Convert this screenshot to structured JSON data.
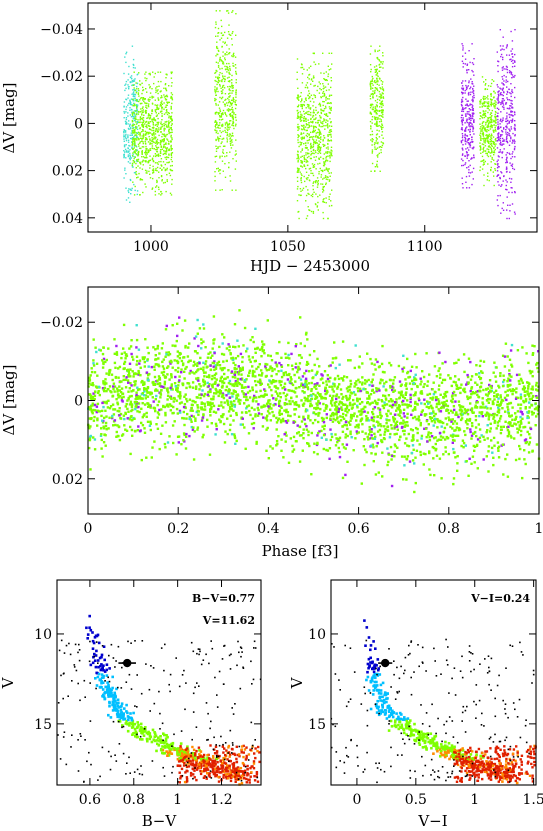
{
  "chart_data": [
    {
      "id": "lightcurve",
      "type": "scatter",
      "xlabel": "HJD − 2453000",
      "ylabel": "ΔV [mag]",
      "xlim": [
        977,
        1141
      ],
      "ylim": [
        0.046,
        -0.051
      ],
      "y_inverted": true,
      "xticks": [
        1000,
        1050,
        1100
      ],
      "yticks": [
        -0.04,
        -0.02,
        0,
        0.02,
        0.04
      ],
      "xtick_labels": [
        "1000",
        "1050",
        "1100"
      ],
      "ytick_labels": [
        "−0.04",
        "−0.02",
        "0",
        "0.02",
        "0.04"
      ],
      "series_colors": [
        "#40e0d0",
        "#7fff00",
        "#a020f0",
        "#000000",
        "#ff8c00"
      ],
      "nights": [
        {
          "x_start": 990,
          "x_end": 995,
          "color": "#40e0d0",
          "min": -0.033,
          "max": 0.034
        },
        {
          "x_start": 993,
          "x_end": 1008,
          "color": "#7fff00",
          "min": -0.022,
          "max": 0.03
        },
        {
          "x_start": 1023,
          "x_end": 1031,
          "color": "#7fff00",
          "min": -0.048,
          "max": 0.028
        },
        {
          "x_start": 1053,
          "x_end": 1066,
          "color": "#7fff00",
          "min": -0.03,
          "max": 0.04
        },
        {
          "x_start": 1080,
          "x_end": 1085,
          "color": "#7fff00",
          "min": -0.033,
          "max": 0.02
        },
        {
          "x_start": 1113,
          "x_end": 1118,
          "color": "#a020f0",
          "min": -0.034,
          "max": 0.027
        },
        {
          "x_start": 1120,
          "x_end": 1126,
          "color": "#7fff00",
          "min": -0.02,
          "max": 0.026
        },
        {
          "x_start": 1126,
          "x_end": 1133,
          "color": "#a020f0",
          "min": -0.04,
          "max": 0.04
        }
      ]
    },
    {
      "id": "phase",
      "type": "scatter",
      "xlabel": "Phase [f3]",
      "ylabel": "ΔV [mag]",
      "xlim": [
        0,
        1
      ],
      "ylim": [
        0.029,
        -0.029
      ],
      "y_inverted": true,
      "xticks": [
        0,
        0.2,
        0.4,
        0.6,
        0.8,
        1
      ],
      "yticks": [
        -0.02,
        0,
        0.02
      ],
      "xtick_labels": [
        "0",
        "0.2",
        "0.4",
        "0.6",
        "0.8",
        "1"
      ],
      "ytick_labels": [
        "−0.02",
        "0",
        "0.02"
      ],
      "amplitude": 0.004,
      "scatter": 0.009,
      "series_colors": [
        "#7fff00",
        "#a020f0",
        "#40e0d0"
      ]
    },
    {
      "id": "cmd_bv",
      "type": "scatter",
      "xlabel": "B−V",
      "ylabel": "V",
      "xlim": [
        0.45,
        1.38
      ],
      "ylim": [
        18.4,
        7.0
      ],
      "xticks": [
        0.6,
        0.8,
        1,
        1.2
      ],
      "yticks": [
        10,
        15
      ],
      "xtick_labels": [
        "0.6",
        "0.8",
        "1",
        "1.2"
      ],
      "ytick_labels": [
        "10",
        "15"
      ],
      "annotations": [
        "B−V=0.77",
        "V=11.62"
      ],
      "marker": {
        "x": 0.77,
        "y": 11.62,
        "xerr": 0.04
      },
      "sequence": [
        [
          0.6,
          9.3
        ],
        [
          0.66,
          12.5
        ],
        [
          0.72,
          14.3
        ],
        [
          0.85,
          15.6
        ],
        [
          1.0,
          16.6
        ],
        [
          1.12,
          17.2
        ],
        [
          1.3,
          17.8
        ]
      ],
      "palette": [
        "#0000cd",
        "#00bfff",
        "#7fff00",
        "#ff8c00",
        "#e02000",
        "#000000"
      ]
    },
    {
      "id": "cmd_vi",
      "type": "scatter",
      "xlabel": "V−I",
      "ylabel": "V",
      "xlim": [
        -0.22,
        1.52
      ],
      "ylim": [
        18.4,
        7.0
      ],
      "xticks": [
        0,
        0.5,
        1,
        1.5
      ],
      "yticks": [
        10,
        15
      ],
      "xtick_labels": [
        "0",
        "0.5",
        "1",
        "1.5"
      ],
      "ytick_labels": [
        "10",
        "15"
      ],
      "annotations": [
        "V−I=0.24"
      ],
      "marker": {
        "x": 0.24,
        "y": 11.62,
        "xerr": 0.06
      },
      "sequence": [
        [
          0.1,
          9.3
        ],
        [
          0.15,
          12.5
        ],
        [
          0.25,
          14.3
        ],
        [
          0.5,
          15.6
        ],
        [
          0.8,
          16.6
        ],
        [
          1.0,
          17.2
        ],
        [
          1.35,
          17.8
        ]
      ],
      "palette": [
        "#0000cd",
        "#00bfff",
        "#7fff00",
        "#ff8c00",
        "#e02000",
        "#000000"
      ]
    }
  ]
}
